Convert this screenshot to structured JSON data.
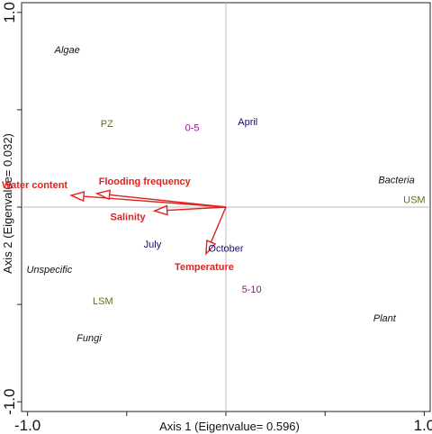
{
  "chart_data": {
    "type": "scatter",
    "title": "",
    "xlabel": "Axis 1 (Eigenvalue= 0.596)",
    "ylabel": "Axis 2 (Eigenvalue= 0.032)",
    "xlim": [
      -1.0,
      1.0
    ],
    "ylim": [
      -1.0,
      1.0
    ],
    "x_ticks": [
      {
        "value": -1.0,
        "label": "-1.0"
      },
      {
        "value": 1.0,
        "label": "1.0"
      }
    ],
    "y_ticks": [
      {
        "value": -1.0,
        "label": "-1.0"
      },
      {
        "value": 1.0,
        "label": "1.0"
      }
    ],
    "grid": false,
    "zero_lines": true,
    "point_labels": [
      {
        "label": "Algae",
        "x": -0.8,
        "y": 0.81,
        "color": "#111111",
        "italic": true
      },
      {
        "label": "Bacteria",
        "x": 0.86,
        "y": 0.14,
        "color": "#111111",
        "italic": true
      },
      {
        "label": "Unspecific",
        "x": -0.89,
        "y": -0.32,
        "color": "#111111",
        "italic": true
      },
      {
        "label": "Plant",
        "x": 0.8,
        "y": -0.57,
        "color": "#111111",
        "italic": true
      },
      {
        "label": "Fungi",
        "x": -0.69,
        "y": -0.67,
        "color": "#111111",
        "italic": true
      },
      {
        "label": "PZ",
        "x": -0.6,
        "y": 0.43,
        "color": "#6b6b1a",
        "italic": false
      },
      {
        "label": "USM",
        "x": 0.95,
        "y": 0.04,
        "color": "#6b6b1a",
        "italic": false
      },
      {
        "label": "LSM",
        "x": -0.62,
        "y": -0.48,
        "color": "#6b6b1a",
        "italic": false
      },
      {
        "label": "April",
        "x": 0.11,
        "y": 0.44,
        "color": "#111166",
        "italic": false
      },
      {
        "label": "July",
        "x": -0.37,
        "y": -0.19,
        "color": "#111166",
        "italic": false
      },
      {
        "label": "October",
        "x": 0.0,
        "y": -0.21,
        "color": "#111166",
        "italic": false
      },
      {
        "label": "0-5",
        "x": -0.17,
        "y": 0.41,
        "color": "#8a1a8a",
        "italic": false
      },
      {
        "label": "5-10",
        "x": 0.13,
        "y": -0.42,
        "color": "#8a1a8a",
        "italic": false
      }
    ],
    "vectors": [
      {
        "label": "Water content",
        "x": -0.78,
        "y": 0.06,
        "color": "#e0211f"
      },
      {
        "label": "Flooding frequency",
        "x": -0.65,
        "y": 0.07,
        "color": "#e0211f"
      },
      {
        "label": "Salinity",
        "x": -0.36,
        "y": -0.02,
        "color": "#e0211f"
      },
      {
        "label": "Temperature",
        "x": -0.1,
        "y": -0.24,
        "color": "#e0211f"
      }
    ]
  }
}
